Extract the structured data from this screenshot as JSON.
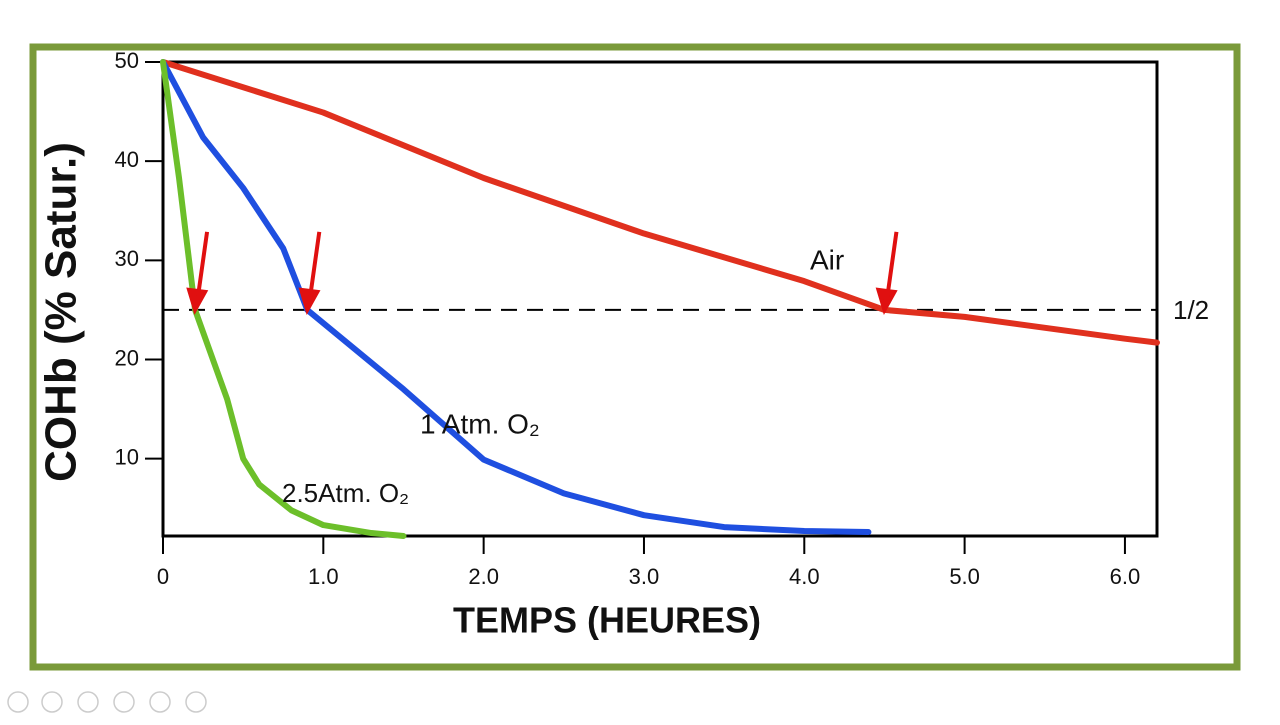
{
  "chart_data": {
    "type": "line",
    "y_label": "COHb (% Satur.)",
    "x_label": "TEMPS (HEURES)",
    "xlim": [
      0,
      6.2
    ],
    "ylim": [
      2.2,
      50
    ],
    "xticks": [
      {
        "value": 0,
        "label": "0"
      },
      {
        "value": 1,
        "label": "1.0"
      },
      {
        "value": 2,
        "label": "2.0"
      },
      {
        "value": 3,
        "label": "3.0"
      },
      {
        "value": 4,
        "label": "4.0"
      },
      {
        "value": 5,
        "label": "5.0"
      },
      {
        "value": 6,
        "label": "6.0"
      }
    ],
    "yticks": [
      10,
      20,
      30,
      40,
      50
    ],
    "half_line": {
      "value": 25,
      "label": "1/2"
    },
    "series": [
      {
        "name": "Air",
        "color": "#e0301e",
        "x": [
          0,
          1,
          2,
          3,
          4,
          4.5,
          5,
          6,
          6.2
        ],
        "values": [
          50,
          44.9,
          38.3,
          32.7,
          27.9,
          25,
          24.3,
          22.1,
          21.7
        ]
      },
      {
        "name": "1 Atm. O₂",
        "color": "#1f4fe0",
        "x": [
          0,
          0.25,
          0.5,
          0.75,
          0.9,
          1.5,
          2,
          2.5,
          3,
          3.5,
          4,
          4.4
        ],
        "values": [
          50,
          42.4,
          37.3,
          31.2,
          25,
          17,
          9.9,
          6.5,
          4.3,
          3.1,
          2.7,
          2.6
        ]
      },
      {
        "name": "2.5Atm. O₂",
        "color": "#6cbf2a",
        "x": [
          0,
          0.1,
          0.2,
          0.4,
          0.5,
          0.6,
          0.8,
          1,
          1.3,
          1.5
        ],
        "values": [
          50,
          38.3,
          25,
          16,
          10,
          7.4,
          4.8,
          3.3,
          2.5,
          2.2
        ]
      }
    ],
    "half_points": [
      {
        "x": 0.2,
        "y": 25
      },
      {
        "x": 0.9,
        "y": 25
      },
      {
        "x": 4.5,
        "y": 25
      }
    ]
  }
}
